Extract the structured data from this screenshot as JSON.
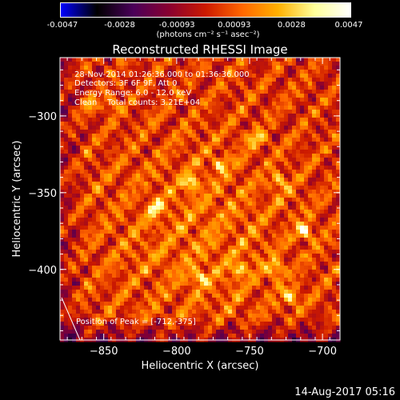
{
  "colorbar": {
    "ticks": [
      "-0.0047",
      "-0.0028",
      "-0.00093",
      "0.00093",
      "0.0028",
      "0.0047"
    ],
    "units": "(photons cm⁻² s⁻¹ asec⁻²)",
    "colormap": [
      "#0000ff",
      "#000000",
      "#4a0059",
      "#8a0030",
      "#cc1a00",
      "#ff6600",
      "#ffb000",
      "#ffff99",
      "#ffffff"
    ]
  },
  "title": "Reconstructed RHESSI Image",
  "info": {
    "time": "28-Nov-2014 01:26:36.000 to 01:36:36.000",
    "detectors": "Detectors: 3F 6F 9F, Att 0",
    "energy": "Energy Range: 6.0 - 12.0 keV",
    "clean": "Clean    Total counts: 3.21E+04"
  },
  "peak_label": "Position of Peak = [-712,-375]",
  "footer": "14-Aug-2017 05:16",
  "chart_data": {
    "type": "heatmap",
    "title": "Reconstructed RHESSI Image",
    "xlabel": "Heliocentric X (arcsec)",
    "ylabel": "Heliocentric Y (arcsec)",
    "xlim": [
      -880,
      -688
    ],
    "ylim": [
      -446,
      -262
    ],
    "x_ticks": [
      -850,
      -800,
      -750,
      -700
    ],
    "y_ticks": [
      -300,
      -350,
      -400
    ],
    "x_tick_labels": [
      "−850",
      "−800",
      "−750",
      "−700"
    ],
    "y_tick_labels": [
      "−300",
      "−350",
      "−400"
    ],
    "colorbar_range": [
      -0.0047,
      0.0047
    ],
    "peak": [
      -712,
      -375
    ],
    "bright_sources": [
      {
        "x": -712,
        "y": -375,
        "intensity": 1.0
      },
      {
        "x": -722,
        "y": -418,
        "intensity": 0.85
      },
      {
        "x": -732,
        "y": -400,
        "intensity": 0.8
      },
      {
        "x": -790,
        "y": -343,
        "intensity": 0.8
      },
      {
        "x": -815,
        "y": -360,
        "intensity": 0.7
      },
      {
        "x": -770,
        "y": -332,
        "intensity": 0.65
      },
      {
        "x": -745,
        "y": -315,
        "intensity": 0.7
      },
      {
        "x": -785,
        "y": -405,
        "intensity": 0.75
      },
      {
        "x": -757,
        "y": -400,
        "intensity": 0.7
      },
      {
        "x": -730,
        "y": -342,
        "intensity": 0.65
      },
      {
        "x": -845,
        "y": -292,
        "intensity": 0.6
      },
      {
        "x": -860,
        "y": -292,
        "intensity": 0.55
      }
    ]
  }
}
